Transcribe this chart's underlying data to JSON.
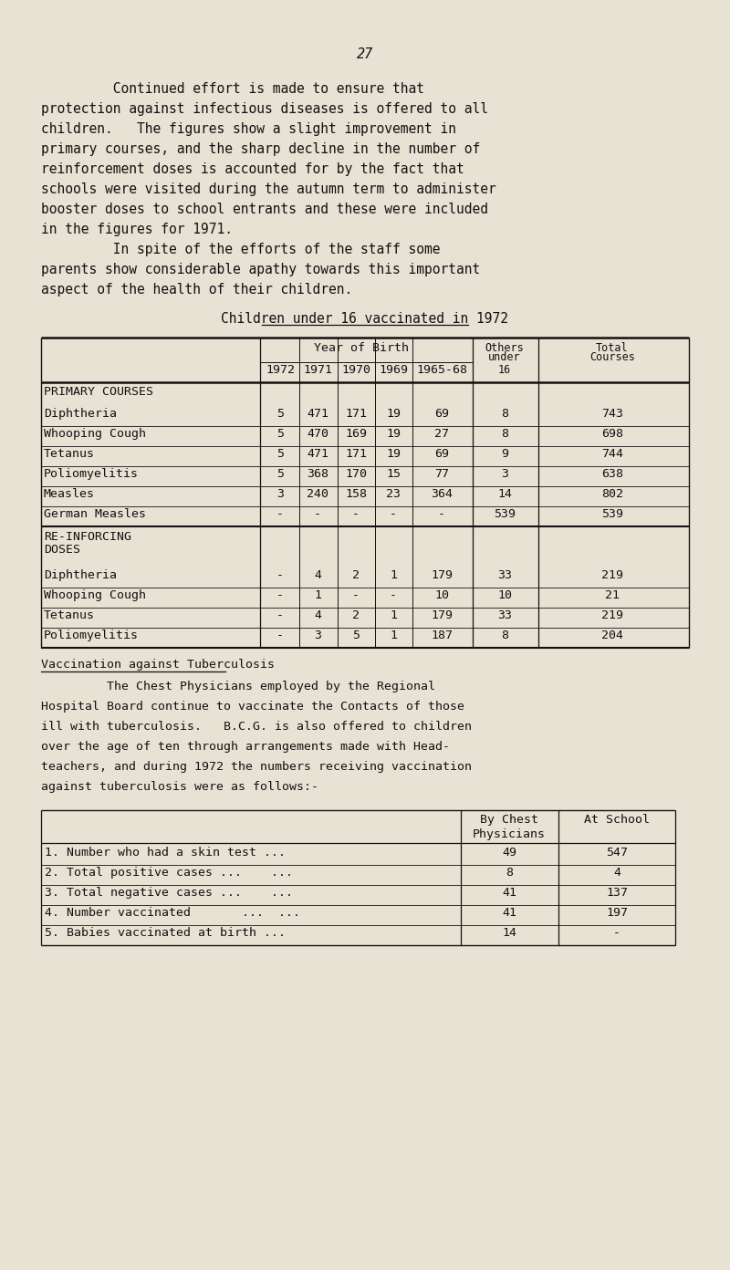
{
  "bg_color": "#e8e2d4",
  "page_number": "27",
  "intro_text": [
    "         Continued effort is made to ensure that",
    "protection against infectious diseases is offered to all",
    "children.   The figures show a slight improvement in",
    "primary courses, and the sharp decline in the number of",
    "reinforcement doses is accounted for by the fact that",
    "schools were visited during the autumn term to administer",
    "booster doses to school entrants and these were included",
    "in the figures for 1971.",
    "         In spite of the efforts of the staff some",
    "parents show considerable apathy towards this important",
    "aspect of the health of their children."
  ],
  "table1_title": "Children under 16 vaccinated in 1972",
  "table1_sections": [
    {
      "section_label": "PRIMARY COURSES",
      "rows": [
        {
          "label": "Diphtheria",
          "vals": [
            "5",
            "471",
            "171",
            "19",
            "69",
            "8",
            "743"
          ]
        },
        {
          "label": "Whooping Cough",
          "vals": [
            "5",
            "470",
            "169",
            "19",
            "27",
            "8",
            "698"
          ]
        },
        {
          "label": "Tetanus",
          "vals": [
            "5",
            "471",
            "171",
            "19",
            "69",
            "9",
            "744"
          ]
        },
        {
          "label": "Poliomyelitis",
          "vals": [
            "5",
            "368",
            "170",
            "15",
            "77",
            "3",
            "638"
          ]
        },
        {
          "label": "Measles",
          "vals": [
            "3",
            "240",
            "158",
            "23",
            "364",
            "14",
            "802"
          ]
        },
        {
          "label": "German Measles",
          "vals": [
            "-",
            "-",
            "-",
            "-",
            "-",
            "539",
            "539"
          ]
        }
      ]
    },
    {
      "section_label": "RE-INFORCING\nDOSES",
      "rows": [
        {
          "label": "Diphtheria",
          "vals": [
            "-",
            "4",
            "2",
            "1",
            "179",
            "33",
            "219"
          ]
        },
        {
          "label": "Whooping Cough",
          "vals": [
            "-",
            "1",
            "-",
            "-",
            "10",
            "10",
            "21"
          ]
        },
        {
          "label": "Tetanus",
          "vals": [
            "-",
            "4",
            "2",
            "1",
            "179",
            "33",
            "219"
          ]
        },
        {
          "label": "Poliomyelitis",
          "vals": [
            "-",
            "3",
            "5",
            "1",
            "187",
            "8",
            "204"
          ]
        }
      ]
    }
  ],
  "tb_section_title": "Vaccination against Tuberculosis",
  "tb_intro": [
    "         The Chest Physicians employed by the Regional",
    "Hospital Board continue to vaccinate the Contacts of those",
    "ill with tuberculosis.   B.C.G. is also offered to children",
    "over the age of ten through arrangements made with Head-",
    "teachers, and during 1972 the numbers receiving vaccination",
    "against tuberculosis were as follows:-"
  ],
  "table2_rows": [
    {
      "label": "1. Number who had a skin test ...",
      "vals": [
        "49",
        "547"
      ]
    },
    {
      "label": "2. Total positive cases ...    ...",
      "vals": [
        "8",
        "4"
      ]
    },
    {
      "label": "3. Total negative cases ...    ...",
      "vals": [
        "41",
        "137"
      ]
    },
    {
      "label": "4. Number vaccinated       ...  ...",
      "vals": [
        "41",
        "197"
      ]
    },
    {
      "label": "5. Babies vaccinated at birth ...",
      "vals": [
        "14",
        "-"
      ]
    }
  ],
  "font_size_body": 10.5,
  "font_size_small": 9.5,
  "text_color": "#111111"
}
